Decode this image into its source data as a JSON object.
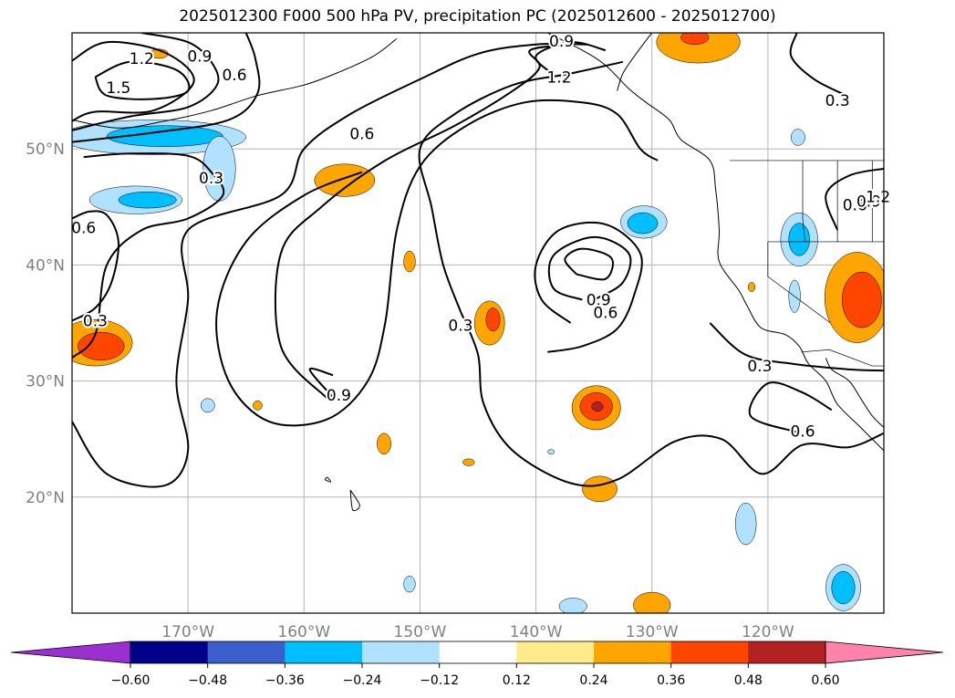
{
  "chart_data": {
    "type": "contour",
    "title": "2025012300 F000 500 hPa PV, precipitation PC (2025012600 - 2025012700)",
    "xlabel": "",
    "ylabel": "",
    "xlim": [
      -180,
      -110
    ],
    "ylim": [
      10,
      60
    ],
    "grid": true,
    "x_ticks": [
      -170,
      -160,
      -150,
      -140,
      -130,
      -120
    ],
    "x_tick_labels": [
      "170°W",
      "160°W",
      "150°W",
      "140°W",
      "130°W",
      "120°W"
    ],
    "y_ticks": [
      20,
      30,
      40,
      50
    ],
    "y_tick_labels": [
      "20°N",
      "30°N",
      "40°N",
      "50°N"
    ],
    "colorbar": {
      "orientation": "horizontal",
      "extend": "both",
      "levels": [
        -0.6,
        -0.48,
        -0.36,
        -0.24,
        -0.12,
        0.12,
        0.24,
        0.36,
        0.48,
        0.6
      ],
      "tick_labels": [
        "−0.60",
        "−0.48",
        "−0.36",
        "−0.24",
        "−0.12",
        "0.12",
        "0.24",
        "0.36",
        "0.48",
        "0.60"
      ],
      "colors": [
        "#9b30d0",
        "#00008b",
        "#3a5fcd",
        "#00bfff",
        "#b0e2ff",
        "#ffffff",
        "#ffeb8a",
        "#ffa500",
        "#ff4500",
        "#b22222",
        "#ff82ab"
      ]
    },
    "pv_contour_labels": [
      {
        "text": "1.2",
        "lon": -174,
        "lat": 57.8
      },
      {
        "text": "1.5",
        "lon": -176,
        "lat": 55.3
      },
      {
        "text": "0.9",
        "lon": -169,
        "lat": 58
      },
      {
        "text": "0.6",
        "lon": -166,
        "lat": 56.4
      },
      {
        "text": "0.3",
        "lon": -168,
        "lat": 47.5
      },
      {
        "text": "0.6",
        "lon": -179,
        "lat": 43.2
      },
      {
        "text": "0.3",
        "lon": -178,
        "lat": 35.2
      },
      {
        "text": "0.6",
        "lon": -155,
        "lat": 51.3
      },
      {
        "text": "0.9",
        "lon": -157,
        "lat": 28.8
      },
      {
        "text": "0.3",
        "lon": -146.5,
        "lat": 34.8
      },
      {
        "text": "0.9",
        "lon": -137.8,
        "lat": 59.3
      },
      {
        "text": "1.2",
        "lon": -138,
        "lat": 56.2
      },
      {
        "text": "0.9",
        "lon": -134.6,
        "lat": 37
      },
      {
        "text": "0.6",
        "lon": -134,
        "lat": 35.9
      },
      {
        "text": "0.3",
        "lon": -120.7,
        "lat": 31.3
      },
      {
        "text": "0.6",
        "lon": -117,
        "lat": 25.7
      },
      {
        "text": "0.3",
        "lon": -114,
        "lat": 54.2
      },
      {
        "text": "0.6",
        "lon": -112.5,
        "lat": 45.2
      },
      {
        "text": "0.9",
        "lon": -111.3,
        "lat": 45.5
      },
      {
        "text": "1.2",
        "lon": -110.5,
        "lat": 45.9
      }
    ],
    "pv_contours": [
      {
        "level": 1.5,
        "pts": [
          [
            -178,
            56.2
          ],
          [
            -175,
            57.5
          ],
          [
            -171,
            56.8
          ],
          [
            -170,
            55
          ],
          [
            -173,
            54.3
          ],
          [
            -177,
            54.6
          ],
          [
            -178,
            56.2
          ]
        ]
      },
      {
        "level": 1.2,
        "pts": [
          [
            -180,
            57.6
          ],
          [
            -177,
            59.2
          ],
          [
            -172,
            58.3
          ],
          [
            -169.5,
            55.8
          ],
          [
            -173,
            53.3
          ],
          [
            -178,
            53.2
          ],
          [
            -180,
            52.4
          ]
        ]
      },
      {
        "level": 0.9,
        "pts": [
          [
            -180,
            51.6
          ],
          [
            -175,
            52.8
          ],
          [
            -170,
            53.6
          ],
          [
            -167.5,
            55.5
          ],
          [
            -168,
            57.5
          ],
          [
            -170,
            59.2
          ],
          [
            -174,
            60
          ]
        ]
      },
      {
        "level": 0.6,
        "pts": [
          [
            -180,
            50.6
          ],
          [
            -173,
            51.4
          ],
          [
            -166.5,
            52.5
          ],
          [
            -164,
            54.8
          ],
          [
            -164.2,
            57.8
          ],
          [
            -165,
            60
          ]
        ]
      },
      {
        "level": 0.3,
        "pts": [
          [
            -179,
            49.3
          ],
          [
            -175,
            49.6
          ],
          [
            -170,
            49.4
          ],
          [
            -168,
            48
          ],
          [
            -167,
            46
          ],
          [
            -170,
            44
          ],
          [
            -174,
            43
          ],
          [
            -177,
            40
          ],
          [
            -178,
            34
          ],
          [
            -180,
            32
          ]
        ]
      },
      {
        "level": 0.3,
        "pts": [
          [
            -180,
            26.5
          ],
          [
            -177,
            22
          ],
          [
            -172,
            21
          ],
          [
            -170,
            24
          ],
          [
            -171,
            30
          ],
          [
            -170,
            37
          ],
          [
            -170,
            43
          ],
          [
            -162,
            46
          ],
          [
            -160,
            50
          ],
          [
            -156,
            53
          ],
          [
            -150,
            56
          ],
          [
            -145,
            58.2
          ],
          [
            -140,
            59
          ],
          [
            -135.5,
            59
          ]
        ]
      },
      {
        "level": 0.6,
        "pts": [
          [
            -180,
            44
          ],
          [
            -178.5,
            44.6
          ],
          [
            -177,
            44.3
          ],
          [
            -176,
            42
          ],
          [
            -176.6,
            38.5
          ],
          [
            -178,
            36.3
          ],
          [
            -180,
            35.2
          ]
        ]
      },
      {
        "level": 0.6,
        "pts": [
          [
            -155,
            48
          ],
          [
            -160,
            46
          ],
          [
            -165,
            42
          ],
          [
            -167.5,
            36
          ],
          [
            -166.5,
            30
          ],
          [
            -163,
            26.5
          ],
          [
            -158,
            26.7
          ],
          [
            -154.5,
            30
          ],
          [
            -153,
            35
          ],
          [
            -152,
            43
          ],
          [
            -150,
            48.5
          ],
          [
            -146,
            52
          ],
          [
            -141,
            54
          ],
          [
            -136,
            54
          ],
          [
            -133,
            53
          ],
          [
            -131,
            50
          ],
          [
            -129.5,
            49
          ]
        ]
      },
      {
        "level": 0.9,
        "pts": [
          [
            -158,
            28.5
          ],
          [
            -162,
            33
          ],
          [
            -162,
            41
          ],
          [
            -158.5,
            45
          ],
          [
            -153,
            49
          ],
          [
            -147,
            52
          ],
          [
            -142,
            55
          ],
          [
            -139.7,
            57
          ],
          [
            -140.5,
            58.5
          ],
          [
            -137,
            59
          ]
        ]
      },
      {
        "level": 1.2,
        "pts": [
          [
            -138.5,
            56.4
          ],
          [
            -140,
            58
          ],
          [
            -137,
            59.2
          ],
          [
            -134,
            58.5
          ]
        ]
      },
      {
        "level": 0.9,
        "pts": [
          [
            -157.5,
            28.6
          ],
          [
            -159.5,
            31
          ],
          [
            -157.5,
            30.5
          ]
        ]
      },
      {
        "level": 0.3,
        "pts": [
          [
            -146.5,
            36
          ],
          [
            -145,
            32.3
          ],
          [
            -144.5,
            28
          ],
          [
            -142,
            24
          ],
          [
            -137,
            21.2
          ],
          [
            -133,
            21.5
          ],
          [
            -128,
            24.8
          ],
          [
            -124,
            25
          ],
          [
            -120.5,
            22
          ],
          [
            -117,
            24.5
          ],
          [
            -113,
            24.3
          ],
          [
            -110,
            25.5
          ]
        ]
      },
      {
        "level": 0.3,
        "pts": [
          [
            -146.5,
            36
          ],
          [
            -148,
            40
          ],
          [
            -149,
            45
          ],
          [
            -150,
            50
          ],
          [
            -147,
            53
          ],
          [
            -142,
            55.5
          ],
          [
            -137,
            56.5
          ],
          [
            -132.5,
            57.5
          ]
        ]
      },
      {
        "level": 0.6,
        "pts": [
          [
            -137,
            35
          ],
          [
            -139.5,
            37
          ],
          [
            -140,
            40
          ],
          [
            -138,
            43
          ],
          [
            -134,
            43.5
          ],
          [
            -131,
            41
          ],
          [
            -131.5,
            37.5
          ],
          [
            -133,
            34.5
          ],
          [
            -136,
            33
          ],
          [
            -139,
            32.5
          ]
        ]
      },
      {
        "level": 0.9,
        "pts": [
          [
            -136,
            37
          ],
          [
            -138.5,
            38
          ],
          [
            -138.5,
            40.8
          ],
          [
            -135,
            42.4
          ],
          [
            -132,
            41
          ],
          [
            -132.5,
            38.5
          ],
          [
            -134.8,
            37.1
          ]
        ]
      },
      {
        "level": 1.2,
        "pts": [
          [
            -136.5,
            39.2
          ],
          [
            -137.5,
            40.5
          ],
          [
            -136,
            41.4
          ],
          [
            -133.5,
            40.6
          ],
          [
            -134,
            38.8
          ],
          [
            -136.5,
            39.2
          ]
        ]
      },
      {
        "level": 0.3,
        "pts": [
          [
            -125,
            35
          ],
          [
            -122,
            32.3
          ],
          [
            -118,
            31.5
          ],
          [
            -113,
            31
          ],
          [
            -110,
            30.9
          ]
        ]
      },
      {
        "level": 0.6,
        "pts": [
          [
            -117.5,
            25.6
          ],
          [
            -121.5,
            27
          ],
          [
            -120,
            29.8
          ],
          [
            -117,
            29
          ],
          [
            -114.5,
            27.5
          ]
        ]
      },
      {
        "level": 0.3,
        "pts": [
          [
            -113,
            54.5
          ],
          [
            -116,
            56
          ],
          [
            -118,
            58
          ],
          [
            -117.5,
            60
          ]
        ]
      },
      {
        "level": 0.6,
        "pts": [
          [
            -110,
            48.3
          ],
          [
            -113,
            47.7
          ],
          [
            -115,
            46
          ],
          [
            -114,
            43
          ]
        ]
      }
    ],
    "precip_patches": [
      {
        "value": 0.24,
        "lon": -178,
        "lat": 33.3,
        "rx": 3.2,
        "ry": 2.0
      },
      {
        "value": 0.36,
        "lon": -177.5,
        "lat": 33.0,
        "rx": 2.0,
        "ry": 1.2
      },
      {
        "value": 0.24,
        "lon": -156.5,
        "lat": 47.3,
        "rx": 2.6,
        "ry": 1.4
      },
      {
        "value": 0.24,
        "lon": -150.9,
        "lat": 40.3,
        "rx": 0.5,
        "ry": 0.9
      },
      {
        "value": 0.24,
        "lon": -144,
        "lat": 35.0,
        "rx": 1.3,
        "ry": 1.9
      },
      {
        "value": 0.36,
        "lon": -143.7,
        "lat": 35.3,
        "rx": 0.6,
        "ry": 1.0
      },
      {
        "value": 0.24,
        "lon": -134.8,
        "lat": 27.7,
        "rx": 2.1,
        "ry": 1.9
      },
      {
        "value": 0.36,
        "lon": -134.8,
        "lat": 27.8,
        "rx": 1.4,
        "ry": 1.2
      },
      {
        "value": 0.48,
        "lon": -134.7,
        "lat": 27.8,
        "rx": 0.5,
        "ry": 0.4
      },
      {
        "value": 0.24,
        "lon": -134.5,
        "lat": 20.7,
        "rx": 1.5,
        "ry": 1.1
      },
      {
        "value": 0.24,
        "lon": -130,
        "lat": 10.7,
        "rx": 1.6,
        "ry": 1.1
      },
      {
        "value": 0.24,
        "lon": -126,
        "lat": 59.2,
        "rx": 3.6,
        "ry": 1.8
      },
      {
        "value": 0.36,
        "lon": -126.3,
        "lat": 59.6,
        "rx": 1.2,
        "ry": 0.6
      },
      {
        "value": 0.24,
        "lon": -112.3,
        "lat": 37.2,
        "rx": 2.8,
        "ry": 3.9
      },
      {
        "value": 0.36,
        "lon": -111.9,
        "lat": 37.0,
        "rx": 1.7,
        "ry": 2.4
      },
      {
        "value": 0.24,
        "lon": -153.1,
        "lat": 24.6,
        "rx": 0.6,
        "ry": 0.9
      },
      {
        "value": 0.24,
        "lon": -164,
        "lat": 27.9,
        "rx": 0.4,
        "ry": 0.4
      },
      {
        "value": 0.24,
        "lon": -145.8,
        "lat": 23.0,
        "rx": 0.5,
        "ry": 0.3
      },
      {
        "value": 0.24,
        "lon": -172.5,
        "lat": 58.2,
        "rx": 0.8,
        "ry": 0.4
      },
      {
        "value": 0.24,
        "lon": -121.4,
        "lat": 38.1,
        "rx": 0.3,
        "ry": 0.4
      },
      {
        "value": -0.24,
        "lon": -173,
        "lat": 51.0,
        "rx": 8.0,
        "ry": 1.5
      },
      {
        "value": -0.36,
        "lon": -172,
        "lat": 51.1,
        "rx": 5.0,
        "ry": 0.9
      },
      {
        "value": -0.24,
        "lon": -167.3,
        "lat": 48.3,
        "rx": 1.4,
        "ry": 2.8
      },
      {
        "value": -0.24,
        "lon": -174.5,
        "lat": 45.6,
        "rx": 4.0,
        "ry": 1.2
      },
      {
        "value": -0.36,
        "lon": -173.5,
        "lat": 45.6,
        "rx": 2.5,
        "ry": 0.7
      },
      {
        "value": -0.24,
        "lon": -130.7,
        "lat": 43.7,
        "rx": 2.0,
        "ry": 1.4
      },
      {
        "value": -0.36,
        "lon": -130.8,
        "lat": 43.6,
        "rx": 1.3,
        "ry": 0.9
      },
      {
        "value": -0.24,
        "lon": -117.3,
        "lat": 42.2,
        "rx": 1.6,
        "ry": 2.3
      },
      {
        "value": -0.36,
        "lon": -117.3,
        "lat": 42.2,
        "rx": 0.9,
        "ry": 1.4
      },
      {
        "value": -0.24,
        "lon": -117.7,
        "lat": 37.3,
        "rx": 0.5,
        "ry": 1.4
      },
      {
        "value": -0.24,
        "lon": -117.4,
        "lat": 51.0,
        "rx": 0.6,
        "ry": 0.7
      },
      {
        "value": -0.24,
        "lon": -121.9,
        "lat": 17.7,
        "rx": 0.9,
        "ry": 1.8
      },
      {
        "value": -0.24,
        "lon": -113.5,
        "lat": 12.2,
        "rx": 1.5,
        "ry": 2.0
      },
      {
        "value": -0.36,
        "lon": -113.5,
        "lat": 12.2,
        "rx": 1.0,
        "ry": 1.4
      },
      {
        "value": -0.24,
        "lon": -136.8,
        "lat": 10.6,
        "rx": 1.2,
        "ry": 0.7
      },
      {
        "value": -0.24,
        "lon": -150.9,
        "lat": 12.5,
        "rx": 0.5,
        "ry": 0.7
      },
      {
        "value": -0.24,
        "lon": -168.3,
        "lat": 27.9,
        "rx": 0.6,
        "ry": 0.6
      },
      {
        "value": -0.24,
        "lon": -138.7,
        "lat": 23.9,
        "rx": 0.3,
        "ry": 0.2
      }
    ]
  }
}
